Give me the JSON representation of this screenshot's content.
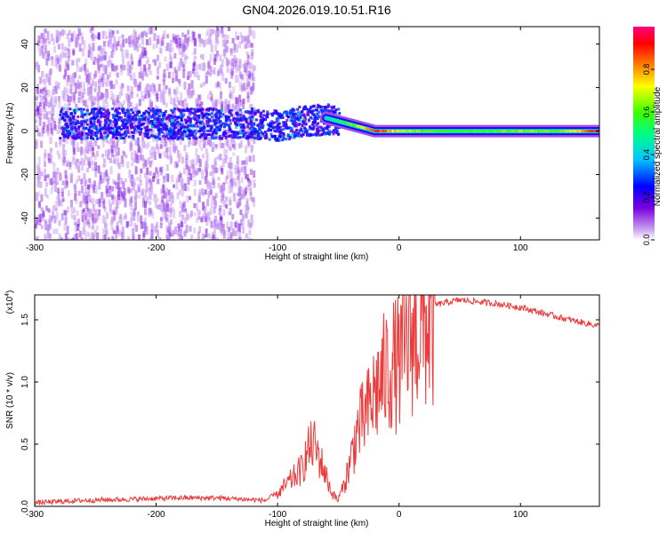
{
  "chart_data": [
    {
      "type": "heatmap",
      "title": "GN04.2026.019.10.51.R16",
      "xlabel": "Height of straight line (km)",
      "ylabel": "Frequency (Hz)",
      "xlim": [
        -300,
        165
      ],
      "ylim": [
        -50,
        48
      ],
      "xticks": [
        -300,
        -200,
        -100,
        0,
        100
      ],
      "yticks": [
        -40,
        -20,
        0,
        20,
        40
      ],
      "colorbar": {
        "label": "Normalized spectral amplitude",
        "range": [
          0.0,
          1.0
        ],
        "ticks": [
          "0.0",
          "0.2",
          "0.4",
          "0.6",
          "0.8"
        ],
        "colormap": "rainbow (violet-blue-cyan-green-yellow-red-magenta)"
      },
      "ridge": {
        "x": [
          -280,
          -250,
          -200,
          -150,
          -120,
          -100,
          -80,
          -60,
          -40,
          -20,
          0,
          20,
          50,
          80,
          100,
          130,
          165
        ],
        "frequency_hz": [
          4,
          4,
          4,
          4,
          4,
          3,
          5,
          6,
          3,
          0,
          0,
          0,
          0,
          0,
          0,
          0,
          0
        ],
        "amplitude": [
          0.2,
          0.15,
          0.2,
          0.2,
          0.25,
          0.3,
          0.35,
          0.45,
          0.6,
          0.9,
          0.7,
          0.6,
          0.6,
          0.6,
          0.65,
          0.6,
          0.95
        ]
      },
      "scatter_region_x": [
        -300,
        -120
      ]
    },
    {
      "type": "line",
      "xlabel": "Height of straight line (km)",
      "ylabel": "SNR (10 * v/v)",
      "y_scale_label": "(x10",
      "y_scale_exp": "4",
      "y_scale_close": ")",
      "xlim": [
        -300,
        165
      ],
      "ylim": [
        0,
        1.7
      ],
      "xticks": [
        -300,
        -200,
        -100,
        0,
        100
      ],
      "yticks": [
        "0.0",
        "0.5",
        "1.0",
        "1.5"
      ],
      "series": [
        {
          "name": "SNR",
          "color": "#ee3a3a",
          "x": [
            -300,
            -260,
            -220,
            -180,
            -150,
            -130,
            -110,
            -100,
            -90,
            -80,
            -75,
            -70,
            -62,
            -55,
            -50,
            -45,
            -40,
            -35,
            -30,
            -25,
            -20,
            -15,
            -10,
            -5,
            0,
            5,
            10,
            20,
            30,
            40,
            50,
            60,
            80,
            100,
            120,
            140,
            165
          ],
          "y": [
            0.02,
            0.04,
            0.05,
            0.06,
            0.06,
            0.05,
            0.04,
            0.1,
            0.2,
            0.3,
            0.45,
            0.5,
            0.3,
            0.1,
            0.05,
            0.2,
            0.4,
            0.65,
            0.75,
            0.85,
            1.0,
            1.1,
            1.2,
            1.25,
            1.25,
            1.4,
            1.5,
            1.58,
            1.62,
            1.64,
            1.66,
            1.65,
            1.63,
            1.6,
            1.55,
            1.5,
            1.45
          ]
        }
      ]
    }
  ],
  "colors": {
    "line": "#ee3a3a",
    "axis": "#000000",
    "background": "#ffffff"
  }
}
